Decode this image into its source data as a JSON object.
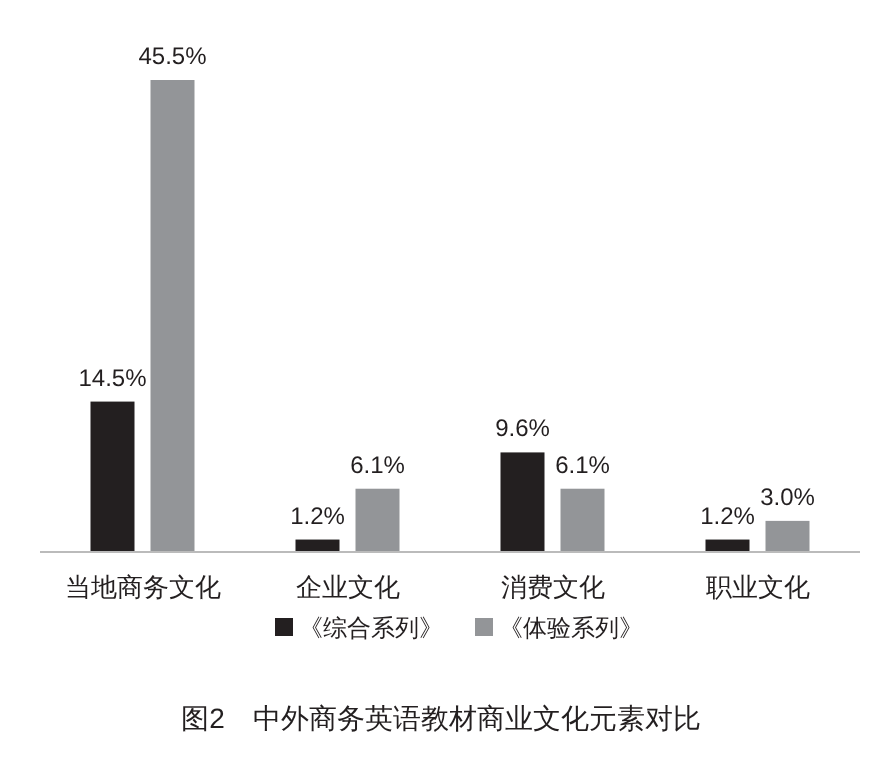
{
  "chart_data": {
    "type": "bar",
    "title": "图2　中外商务英语教材商业文化元素对比",
    "categories": [
      "当地商务文化",
      "企业文化",
      "消费文化",
      "职业文化"
    ],
    "series": [
      {
        "name": "《综合系列》",
        "color": "#231f20",
        "values": [
          14.5,
          1.2,
          9.6,
          1.2
        ],
        "value_labels": [
          "14.5%",
          "1.2%",
          "9.6%",
          "1.2%"
        ]
      },
      {
        "name": "《体验系列》",
        "color": "#939598",
        "values": [
          45.5,
          6.1,
          6.1,
          3.0
        ],
        "value_labels": [
          "45.5%",
          "6.1%",
          "6.1%",
          "3.0%"
        ]
      }
    ],
    "legend": "bottom"
  }
}
